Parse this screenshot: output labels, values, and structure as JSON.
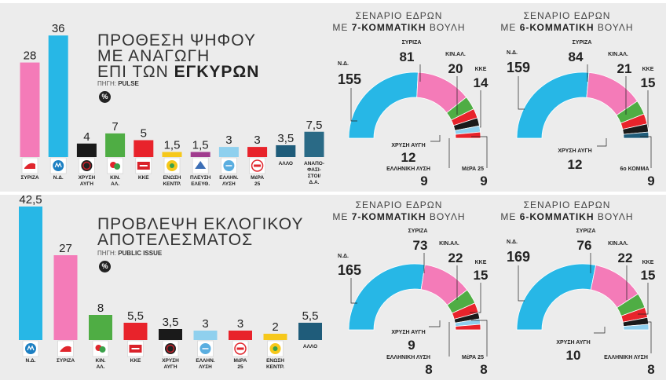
{
  "colors": {
    "nd": "#27b7e6",
    "syriza": "#f47bb8",
    "ka": "#e8232b",
    "kinal": "#4fad44",
    "kke": "#e8232b",
    "enosi": "#f6c81b",
    "pleysi": "#a03c8e",
    "ellinikh": "#8fd0ee",
    "mera": "#e8232b",
    "allo": "#1f5c7a",
    "anapo": "#2a6a86",
    "xa": "#1a1a1a"
  },
  "top": {
    "title_l1": "ΠΡΟΘΕΣΗ ΨΗΦΟΥ",
    "title_l2": "ΜΕ ΑΝΑΓΩΓΗ",
    "title_l3a": "ΕΠΙ ΤΩΝ ",
    "title_l3b": "ΕΓΚΥΡΩΝ",
    "source_label": "ΠΗΓΗ: ",
    "source": "PULSE",
    "pct_badge": "%",
    "bars": [
      {
        "label": "28",
        "name": "ΣΥΡΙΖΑ",
        "value": 28,
        "color": "#f47bb8",
        "logo": "syriza-logo"
      },
      {
        "label": "36",
        "name": "Ν.Δ.",
        "value": 36,
        "color": "#27b7e6",
        "logo": "nd-logo"
      },
      {
        "label": "4",
        "name": "ΧΡΥΣΗ ΑΥΓΗ",
        "value": 4,
        "color": "#1a1a1a",
        "logo": "xa-logo"
      },
      {
        "label": "7",
        "name": "ΚΙΝ. ΑΛ.",
        "value": 7,
        "color": "#4fad44",
        "logo": "kinal-logo"
      },
      {
        "label": "5",
        "name": "ΚΚΕ",
        "value": 5,
        "color": "#e8232b",
        "logo": "kke-logo"
      },
      {
        "label": "1,5",
        "name": "ΕΝΩΣΗ ΚΕΝΤΡ.",
        "value": 1.5,
        "color": "#f6c81b",
        "logo": "enosi-logo"
      },
      {
        "label": "1,5",
        "name": "ΠΛΕΥΣΗ ΕΛΕΥΘ.",
        "value": 1.5,
        "color": "#a03c8e",
        "logo": "pleysi-logo"
      },
      {
        "label": "3",
        "name": "ΕΛΛΗΝ. ΛΥΣΗ",
        "value": 3,
        "color": "#8fd0ee",
        "logo": "ellinikh-logo"
      },
      {
        "label": "3",
        "name": "ΜέΡΑ 25",
        "value": 3,
        "color": "#e8232b",
        "logo": "mera-logo"
      },
      {
        "label": "3,5",
        "name": "ΑΛΛΟ",
        "value": 3.5,
        "color": "#1f5c7a",
        "logo": ""
      },
      {
        "label": "7,5",
        "name": "ΑΝΑΠΟ- ΦΑΣΙ- ΣΤΟΙ/ Δ.Α.",
        "value": 7.5,
        "color": "#2a6a86",
        "logo": ""
      }
    ],
    "seat7": {
      "h1": "ΣΕΝΑΡΙΟ ΕΔΡΩΝ",
      "h2a": "ΜΕ ",
      "h2b": "7-ΚΟΜΜΑΤΙΚΗ",
      "h2c": " ΒΟΥΛΗ",
      "parties": [
        {
          "name": "Ν.Δ.",
          "seats": 155,
          "color": "#27b7e6"
        },
        {
          "name": "ΣΥΡΙΖΑ",
          "seats": 81,
          "color": "#f47bb8"
        },
        {
          "name": "ΚΙΝ.ΑΛ.",
          "seats": 20,
          "color": "#4fad44"
        },
        {
          "name": "ΚΚΕ",
          "seats": 14,
          "color": "#e8232b"
        },
        {
          "name": "ΧΡΥΣΗ ΑΥΓΗ",
          "seats": 12,
          "color": "#1a1a1a"
        },
        {
          "name": "ΕΛΛΗΝΙΚΗ ΛΥΣΗ",
          "seats": 9,
          "color": "#8fd0ee"
        },
        {
          "name": "ΜέΡΑ 25",
          "seats": 9,
          "color": "#e8232b"
        }
      ]
    },
    "seat6": {
      "h1": "ΣΕΝΑΡΙΟ ΕΔΡΩΝ",
      "h2a": "ΜΕ ",
      "h2b": "6-ΚΟΜΜΑΤΙΚΗ",
      "h2c": " ΒΟΥΛΗ",
      "parties": [
        {
          "name": "Ν.Δ.",
          "seats": 159,
          "color": "#27b7e6"
        },
        {
          "name": "ΣΥΡΙΖΑ",
          "seats": 84,
          "color": "#f47bb8"
        },
        {
          "name": "ΚΙΝ.ΑΛ.",
          "seats": 21,
          "color": "#4fad44"
        },
        {
          "name": "ΚΚΕ",
          "seats": 15,
          "color": "#e8232b"
        },
        {
          "name": "ΧΡΥΣΗ ΑΥΓΗ",
          "seats": 12,
          "color": "#1a1a1a"
        },
        {
          "name": "6ο ΚΟΜΜΑ",
          "seats": 9,
          "color": "#1f5c7a"
        }
      ]
    }
  },
  "bottom": {
    "title_l1": "ΠΡΟΒΛΕΨΗ ΕΚΛΟΓΙΚΟΥ",
    "title_l2": "ΑΠΟΤΕΛΕΣΜΑΤΟΣ",
    "source_label": "ΠΗΓΗ: ",
    "source": "PUBLIC ISSUE",
    "pct_badge": "%",
    "bars": [
      {
        "label": "42,5",
        "name": "Ν.Δ.",
        "value": 42.5,
        "color": "#27b7e6",
        "logo": "nd-logo"
      },
      {
        "label": "27",
        "name": "ΣΥΡΙΖΑ",
        "value": 27,
        "color": "#f47bb8",
        "logo": "syriza-logo"
      },
      {
        "label": "8",
        "name": "ΚΙΝ. ΑΛ.",
        "value": 8,
        "color": "#4fad44",
        "logo": "kinal-logo"
      },
      {
        "label": "5,5",
        "name": "ΚΚΕ",
        "value": 5.5,
        "color": "#e8232b",
        "logo": "kke-logo"
      },
      {
        "label": "3,5",
        "name": "ΧΡΥΣΗ ΑΥΓΗ",
        "value": 3.5,
        "color": "#1a1a1a",
        "logo": "xa-logo"
      },
      {
        "label": "3",
        "name": "ΕΛΛΗΝ. ΛΥΣΗ",
        "value": 3,
        "color": "#8fd0ee",
        "logo": "ellinikh-logo"
      },
      {
        "label": "3",
        "name": "ΜέΡΑ 25",
        "value": 3,
        "color": "#e8232b",
        "logo": "mera-logo"
      },
      {
        "label": "2",
        "name": "ΕΝΩΣΗ ΚΕΝΤΡ.",
        "value": 2,
        "color": "#f6c81b",
        "logo": "enosi-logo"
      },
      {
        "label": "5,5",
        "name": "ΑΛΛΟ",
        "value": 5.5,
        "color": "#1f5c7a",
        "logo": ""
      }
    ],
    "seat7": {
      "h1": "ΣΕΝΑΡΙΟ ΕΔΡΩΝ",
      "h2a": "ΜΕ ",
      "h2b": "7-ΚΟΜΜΑΤΙΚΗ",
      "h2c": " ΒΟΥΛΗ",
      "parties": [
        {
          "name": "Ν.Δ.",
          "seats": 165,
          "color": "#27b7e6"
        },
        {
          "name": "ΣΥΡΙΖΑ",
          "seats": 73,
          "color": "#f47bb8"
        },
        {
          "name": "ΚΙΝ.ΑΛ.",
          "seats": 22,
          "color": "#4fad44"
        },
        {
          "name": "ΚΚΕ",
          "seats": 15,
          "color": "#e8232b"
        },
        {
          "name": "ΧΡΥΣΗ ΑΥΓΗ",
          "seats": 9,
          "color": "#1a1a1a"
        },
        {
          "name": "ΕΛΛΗΝΙΚΗ ΛΥΣΗ",
          "seats": 8,
          "color": "#8fd0ee"
        },
        {
          "name": "ΜέΡΑ 25",
          "seats": 8,
          "color": "#e8232b"
        }
      ]
    },
    "seat6": {
      "h1": "ΣΕΝΑΡΙΟ ΕΔΡΩΝ",
      "h2a": "ΜΕ ",
      "h2b": "6-ΚΟΜΜΑΤΙΚΗ",
      "h2c": " ΒΟΥΛΗ",
      "parties": [
        {
          "name": "Ν.Δ.",
          "seats": 169,
          "color": "#27b7e6"
        },
        {
          "name": "ΣΥΡΙΖΑ",
          "seats": 76,
          "color": "#f47bb8"
        },
        {
          "name": "ΚΙΝ.ΑΛ.",
          "seats": 22,
          "color": "#4fad44"
        },
        {
          "name": "ΚΚΕ",
          "seats": 15,
          "color": "#e8232b"
        },
        {
          "name": "ΧΡΥΣΗ ΑΥΓΗ",
          "seats": 10,
          "color": "#1a1a1a"
        },
        {
          "name": "ΕΛΛΗΝΙΚΗ ΛΥΣΗ",
          "seats": 8,
          "color": "#8fd0ee"
        }
      ]
    }
  },
  "chart_data": [
    {
      "type": "bar",
      "title": "ΠΡΟΘΕΣΗ ΨΗΦΟΥ ΜΕ ΑΝΑΓΩΓΗ ΕΠΙ ΤΩΝ ΕΓΚΥΡΩΝ",
      "categories": [
        "ΣΥΡΙΖΑ",
        "Ν.Δ.",
        "ΧΡΥΣΗ ΑΥΓΗ",
        "ΚΙΝ. ΑΛ.",
        "ΚΚΕ",
        "ΕΝΩΣΗ ΚΕΝΤΡ.",
        "ΠΛΕΥΣΗ ΕΛΕΥΘ.",
        "ΕΛΛΗΝ. ΛΥΣΗ",
        "ΜέΡΑ 25",
        "ΑΛΛΟ",
        "ΑΝΑΠΟΦΑΣΙΣΤΟΙ/Δ.Α."
      ],
      "values": [
        28,
        36,
        4,
        7,
        5,
        1.5,
        1.5,
        3,
        3,
        3.5,
        7.5
      ]
    },
    {
      "type": "pie",
      "title": "ΣΕΝΑΡΙΟ ΕΔΡΩΝ ΜΕ 7-ΚΟΜΜΑΤΙΚΗ ΒΟΥΛΗ",
      "categories": [
        "Ν.Δ.",
        "ΣΥΡΙΖΑ",
        "ΚΙΝ.ΑΛ.",
        "ΚΚΕ",
        "ΧΡΥΣΗ ΑΥΓΗ",
        "ΕΛΛΗΝΙΚΗ ΛΥΣΗ",
        "ΜέΡΑ 25"
      ],
      "values": [
        155,
        81,
        20,
        14,
        12,
        9,
        9
      ]
    },
    {
      "type": "pie",
      "title": "ΣΕΝΑΡΙΟ ΕΔΡΩΝ ΜΕ 6-ΚΟΜΜΑΤΙΚΗ ΒΟΥΛΗ",
      "categories": [
        "Ν.Δ.",
        "ΣΥΡΙΖΑ",
        "ΚΙΝ.ΑΛ.",
        "ΚΚΕ",
        "ΧΡΥΣΗ ΑΥΓΗ",
        "6ο ΚΟΜΜΑ"
      ],
      "values": [
        159,
        84,
        21,
        15,
        12,
        9
      ]
    },
    {
      "type": "bar",
      "title": "ΠΡΟΒΛΕΨΗ ΕΚΛΟΓΙΚΟΥ ΑΠΟΤΕΛΕΣΜΑΤΟΣ",
      "categories": [
        "Ν.Δ.",
        "ΣΥΡΙΖΑ",
        "ΚΙΝ. ΑΛ.",
        "ΚΚΕ",
        "ΧΡΥΣΗ ΑΥΓΗ",
        "ΕΛΛΗΝ. ΛΥΣΗ",
        "ΜέΡΑ 25",
        "ΕΝΩΣΗ ΚΕΝΤΡ.",
        "ΑΛΛΟ"
      ],
      "values": [
        42.5,
        27,
        8,
        5.5,
        3.5,
        3,
        3,
        2,
        5.5
      ]
    },
    {
      "type": "pie",
      "title": "ΣΕΝΑΡΙΟ ΕΔΡΩΝ ΜΕ 7-ΚΟΜΜΑΤΙΚΗ ΒΟΥΛΗ",
      "categories": [
        "Ν.Δ.",
        "ΣΥΡΙΖΑ",
        "ΚΙΝ.ΑΛ.",
        "ΚΚΕ",
        "ΧΡΥΣΗ ΑΥΓΗ",
        "ΕΛΛΗΝΙΚΗ ΛΥΣΗ",
        "ΜέΡΑ 25"
      ],
      "values": [
        165,
        73,
        22,
        15,
        9,
        8,
        8
      ]
    },
    {
      "type": "pie",
      "title": "ΣΕΝΑΡΙΟ ΕΔΡΩΝ ΜΕ 6-ΚΟΜΜΑΤΙΚΗ ΒΟΥΛΗ",
      "categories": [
        "Ν.Δ.",
        "ΣΥΡΙΖΑ",
        "ΚΙΝ.ΑΛ.",
        "ΚΚΕ",
        "ΧΡΥΣΗ ΑΥΓΗ",
        "ΕΛΛΗΝΙΚΗ ΛΥΣΗ"
      ],
      "values": [
        169,
        76,
        22,
        15,
        10,
        8
      ]
    }
  ]
}
